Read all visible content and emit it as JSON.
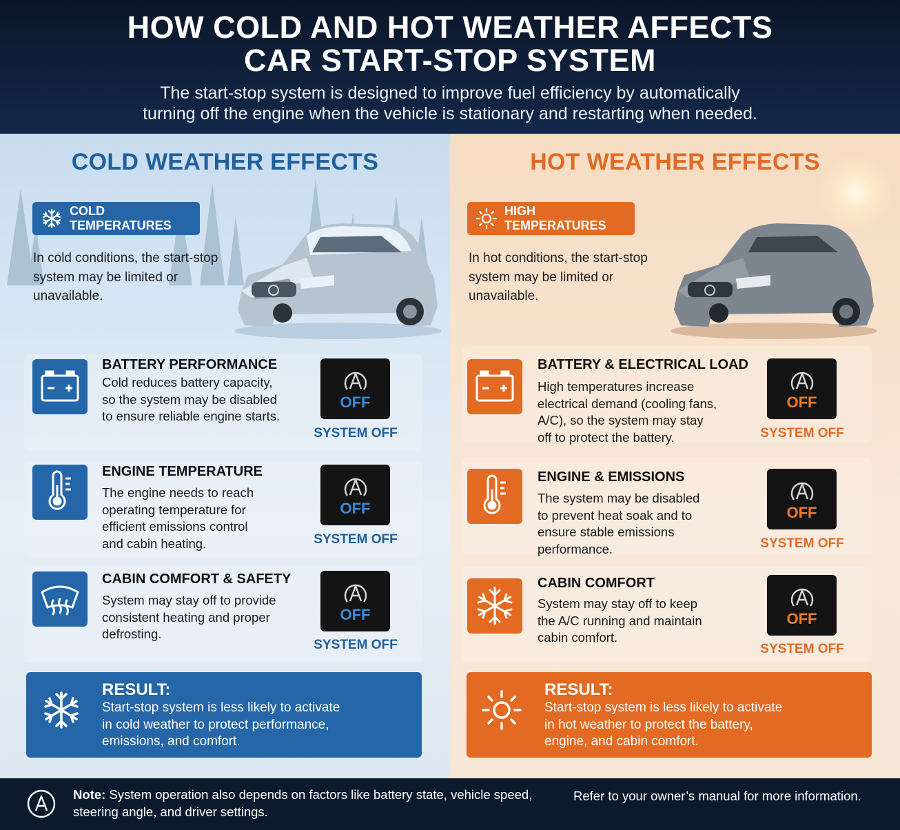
{
  "header": {
    "title_line1": "HOW COLD AND HOT WEATHER AFFECTS",
    "title_line2": "CAR START-STOP SYSTEM",
    "subtitle_line1": "The start-stop system is designed to improve fuel efficiency by automatically",
    "subtitle_line2": "turning off the engine when the vehicle is stationary and restarting when needed."
  },
  "cold": {
    "title": "COLD WEATHER EFFECTS",
    "badge": "COLD TEMPERATURES",
    "intro": [
      "In cold conditions, the start-stop",
      "system may be limited or",
      "unavailable."
    ],
    "items": [
      {
        "title": "BATTERY PERFORMANCE",
        "icon": "battery-icon",
        "lines": [
          "Cold reduces battery capacity,",
          "so the system may be disabled",
          "to ensure reliable engine starts."
        ],
        "indicator": "OFF",
        "status": "SYSTEM OFF"
      },
      {
        "title": "ENGINE TEMPERATURE",
        "icon": "thermometer-icon",
        "lines": [
          "The engine needs to reach",
          "operating temperature for",
          "efficient emissions control",
          "and cabin heating."
        ],
        "indicator": "OFF",
        "status": "SYSTEM OFF"
      },
      {
        "title": "CABIN COMFORT & SAFETY",
        "icon": "defrost-icon",
        "lines": [
          "System may stay off to provide",
          "consistent heating and proper",
          "defrosting."
        ],
        "indicator": "OFF",
        "status": "SYSTEM OFF"
      }
    ],
    "result_title": "RESULT:",
    "result_lines": [
      "Start-stop system is less likely to activate",
      "in cold weather to protect performance,",
      "emissions, and comfort."
    ],
    "accent": "#2466a8"
  },
  "hot": {
    "title": "HOT WEATHER EFFECTS",
    "badge": "HIGH TEMPERATURES",
    "intro": [
      "In hot conditions, the start-stop",
      "system may be limited or",
      "unavailable."
    ],
    "items": [
      {
        "title": "BATTERY & ELECTRICAL LOAD",
        "icon": "battery-icon",
        "lines": [
          "High temperatures increase",
          "electrical demand (cooling fans,",
          "A/C), so the system may stay",
          "off to protect the battery."
        ],
        "indicator": "OFF",
        "status": "SYSTEM OFF"
      },
      {
        "title": "ENGINE & EMISSIONS",
        "icon": "thermometer-icon",
        "lines": [
          "The system may be disabled",
          "to prevent heat soak and to",
          "ensure stable emissions",
          "performance."
        ],
        "indicator": "OFF",
        "status": "SYSTEM OFF"
      },
      {
        "title": "CABIN COMFORT",
        "icon": "snowflake-icon",
        "lines": [
          "System may stay off to keep",
          "the A/C running and maintain",
          "cabin comfort."
        ],
        "indicator": "OFF",
        "status": "SYSTEM OFF"
      }
    ],
    "result_title": "RESULT:",
    "result_lines": [
      "Start-stop system is less likely to activate",
      "in hot weather to protect the battery,",
      "engine, and cabin comfort."
    ],
    "accent": "#e36a23"
  },
  "footer": {
    "note_label": "Note:",
    "note_line1": " System operation also depends on factors like battery state, vehicle speed,",
    "note_line2": "steering angle, and driver settings.",
    "reference": "Refer to your owner’s manual for more information."
  }
}
